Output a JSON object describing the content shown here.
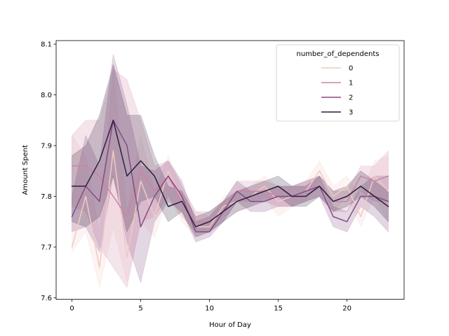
{
  "chart_data": {
    "type": "line",
    "title": "",
    "xlabel": "Hour of Day",
    "ylabel": "Amount Spent",
    "xlim": [
      -1.15,
      24.15
    ],
    "ylim": [
      7.597,
      8.107
    ],
    "xticks": [
      0,
      5,
      10,
      15,
      20
    ],
    "yticks": [
      7.6,
      7.7,
      7.8,
      7.9,
      8.0,
      8.1
    ],
    "ytick_labels": [
      "7.6",
      "7.7",
      "7.8",
      "7.9",
      "8.0",
      "8.1"
    ],
    "grid": false,
    "legend": {
      "title": "number_of_dependents",
      "placement": "top-right"
    },
    "x": [
      0,
      1,
      2,
      3,
      4,
      5,
      6,
      7,
      8,
      9,
      10,
      11,
      12,
      13,
      14,
      15,
      16,
      17,
      18,
      19,
      20,
      21,
      22,
      23
    ],
    "series": [
      {
        "name": "0",
        "color": "#f1c9c4",
        "values": [
          7.7,
          7.8,
          7.66,
          7.89,
          7.68,
          7.83,
          7.76,
          7.85,
          7.79,
          7.74,
          7.74,
          7.78,
          7.79,
          7.8,
          7.82,
          7.79,
          7.8,
          7.81,
          7.85,
          7.8,
          7.82,
          7.76,
          7.84,
          7.81
        ],
        "lower": [
          7.69,
          7.73,
          7.62,
          7.74,
          7.63,
          7.75,
          7.72,
          7.8,
          7.75,
          7.72,
          7.73,
          7.76,
          7.77,
          7.78,
          7.8,
          7.76,
          7.78,
          7.79,
          7.83,
          7.77,
          7.8,
          7.74,
          7.8,
          7.75
        ],
        "upper": [
          7.92,
          7.88,
          7.73,
          8.06,
          7.77,
          7.92,
          7.81,
          7.88,
          7.82,
          7.77,
          7.76,
          7.8,
          7.81,
          7.82,
          7.84,
          7.82,
          7.82,
          7.83,
          7.87,
          7.82,
          7.84,
          7.8,
          7.87,
          7.88
        ]
      },
      {
        "name": "1",
        "color": "#ce82a5",
        "values": [
          7.86,
          7.86,
          7.84,
          7.8,
          7.76,
          7.85,
          7.81,
          7.84,
          7.79,
          7.75,
          7.75,
          7.77,
          7.81,
          7.81,
          7.81,
          7.8,
          7.8,
          7.81,
          7.82,
          7.79,
          7.79,
          7.84,
          7.83,
          7.84
        ],
        "lower": [
          7.78,
          7.77,
          7.7,
          7.66,
          7.62,
          7.75,
          7.76,
          7.8,
          7.76,
          7.73,
          7.73,
          7.75,
          7.79,
          7.79,
          7.79,
          7.78,
          7.78,
          7.79,
          7.8,
          7.77,
          7.77,
          7.81,
          7.79,
          7.79
        ],
        "upper": [
          7.92,
          7.95,
          7.95,
          8.05,
          8.03,
          7.95,
          7.86,
          7.87,
          7.82,
          7.77,
          7.77,
          7.79,
          7.83,
          7.83,
          7.83,
          7.82,
          7.82,
          7.83,
          7.84,
          7.81,
          7.81,
          7.86,
          7.86,
          7.89
        ]
      },
      {
        "name": "2",
        "color": "#854b83",
        "values": [
          7.76,
          7.82,
          7.79,
          7.95,
          7.9,
          7.74,
          7.8,
          7.84,
          7.8,
          7.73,
          7.73,
          7.77,
          7.81,
          7.79,
          7.79,
          7.8,
          7.8,
          7.81,
          7.82,
          7.76,
          7.75,
          7.8,
          7.8,
          7.79
        ],
        "lower": [
          7.73,
          7.74,
          7.69,
          7.84,
          7.71,
          7.63,
          7.75,
          7.79,
          7.77,
          7.71,
          7.72,
          7.75,
          7.79,
          7.77,
          7.77,
          7.78,
          7.78,
          7.79,
          7.8,
          7.74,
          7.73,
          7.78,
          7.76,
          7.73
        ],
        "upper": [
          7.8,
          7.92,
          7.86,
          8.08,
          7.98,
          7.86,
          7.85,
          7.87,
          7.83,
          7.75,
          7.76,
          7.79,
          7.83,
          7.81,
          7.81,
          7.82,
          7.82,
          7.83,
          7.84,
          7.78,
          7.77,
          7.82,
          7.84,
          7.84
        ]
      },
      {
        "name": "3",
        "color": "#2d1e3e",
        "values": [
          7.82,
          7.82,
          7.87,
          7.95,
          7.84,
          7.87,
          7.84,
          7.78,
          7.79,
          7.74,
          7.75,
          7.77,
          7.79,
          7.8,
          7.81,
          7.82,
          7.8,
          7.8,
          7.82,
          7.79,
          7.8,
          7.82,
          7.8,
          7.78
        ],
        "lower": [
          7.75,
          7.74,
          7.76,
          7.84,
          7.73,
          7.79,
          7.8,
          7.75,
          7.77,
          7.72,
          7.73,
          7.75,
          7.77,
          7.78,
          7.79,
          7.8,
          7.78,
          7.78,
          7.8,
          7.77,
          7.78,
          7.8,
          7.78,
          7.75
        ],
        "upper": [
          7.88,
          7.9,
          7.96,
          8.06,
          7.96,
          7.96,
          7.88,
          7.82,
          7.81,
          7.76,
          7.77,
          7.79,
          7.81,
          7.82,
          7.83,
          7.84,
          7.82,
          7.82,
          7.84,
          7.81,
          7.82,
          7.85,
          7.83,
          7.81
        ]
      }
    ]
  }
}
